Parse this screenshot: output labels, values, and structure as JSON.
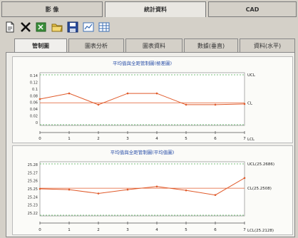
{
  "top_tabs": [
    {
      "label": "影 像",
      "active": false
    },
    {
      "label": "統計資料",
      "active": true
    },
    {
      "label": "CAD",
      "active": false
    }
  ],
  "toolbar": [
    {
      "icon": "new-page-icon"
    },
    {
      "icon": "delete-x-icon"
    },
    {
      "icon": "export-icon"
    },
    {
      "icon": "open-folder-icon"
    },
    {
      "icon": "save-icon"
    },
    {
      "icon": "chart-view-icon"
    },
    {
      "icon": "table-view-icon"
    }
  ],
  "sub_tabs": [
    {
      "label": "管制圖",
      "active": true
    },
    {
      "label": "圖表分析",
      "active": false
    },
    {
      "label": "圖表資料",
      "active": false
    },
    {
      "label": "數據(垂直)",
      "active": false
    },
    {
      "label": "資料(水平)",
      "active": false
    }
  ],
  "chart_data": [
    {
      "type": "line",
      "title": "平均值與全距管制圖(極差圖)",
      "x": [
        0,
        1,
        2,
        3,
        4,
        5,
        6,
        7
      ],
      "x_tick_labels": [
        "0",
        "1",
        "2",
        "3",
        "4",
        "5",
        "6",
        "7"
      ],
      "y_tick_labels": [
        "0.14",
        "0.12",
        "0.1",
        "0.08",
        "0.06",
        "0.04",
        "0.02",
        "0"
      ],
      "ylim": [
        0,
        0.14
      ],
      "values": [
        0.07,
        0.085,
        0.055,
        0.085,
        0.085,
        0.055,
        0.055,
        0.057
      ],
      "control_lines": [
        {
          "label": "UCL",
          "value": 0.14
        },
        {
          "label": "CL",
          "value": 0.06
        },
        {
          "label": "LCL",
          "value": 0
        }
      ],
      "colors": {
        "line": "#e05a2a",
        "ucl": "#4caf50",
        "cl": "#e05a2a"
      }
    },
    {
      "type": "line",
      "title": "平均值與全距管制圖(平均值圖)",
      "x": [
        0,
        1,
        2,
        3,
        4,
        5,
        6,
        7
      ],
      "x_tick_labels": [
        "0",
        "1",
        "2",
        "3",
        "4",
        "5",
        "6",
        "7"
      ],
      "y_tick_labels": [
        "25.28",
        "25.27",
        "25.26",
        "25.25",
        "25.24",
        "25.23",
        "25.22"
      ],
      "ylim": [
        25.215,
        25.285
      ],
      "values": [
        25.25,
        25.249,
        25.244,
        25.249,
        25.253,
        25.248,
        25.242,
        25.264
      ],
      "control_lines": [
        {
          "label": "UCL(25.2686)",
          "value": 25.2686
        },
        {
          "label": "CL(25.2508)",
          "value": 25.2508
        },
        {
          "label": "LCL(25.2128)",
          "value": 25.2128
        }
      ],
      "colors": {
        "line": "#e05a2a",
        "ucl": "#4caf50",
        "cl": "#e05a2a"
      }
    }
  ]
}
